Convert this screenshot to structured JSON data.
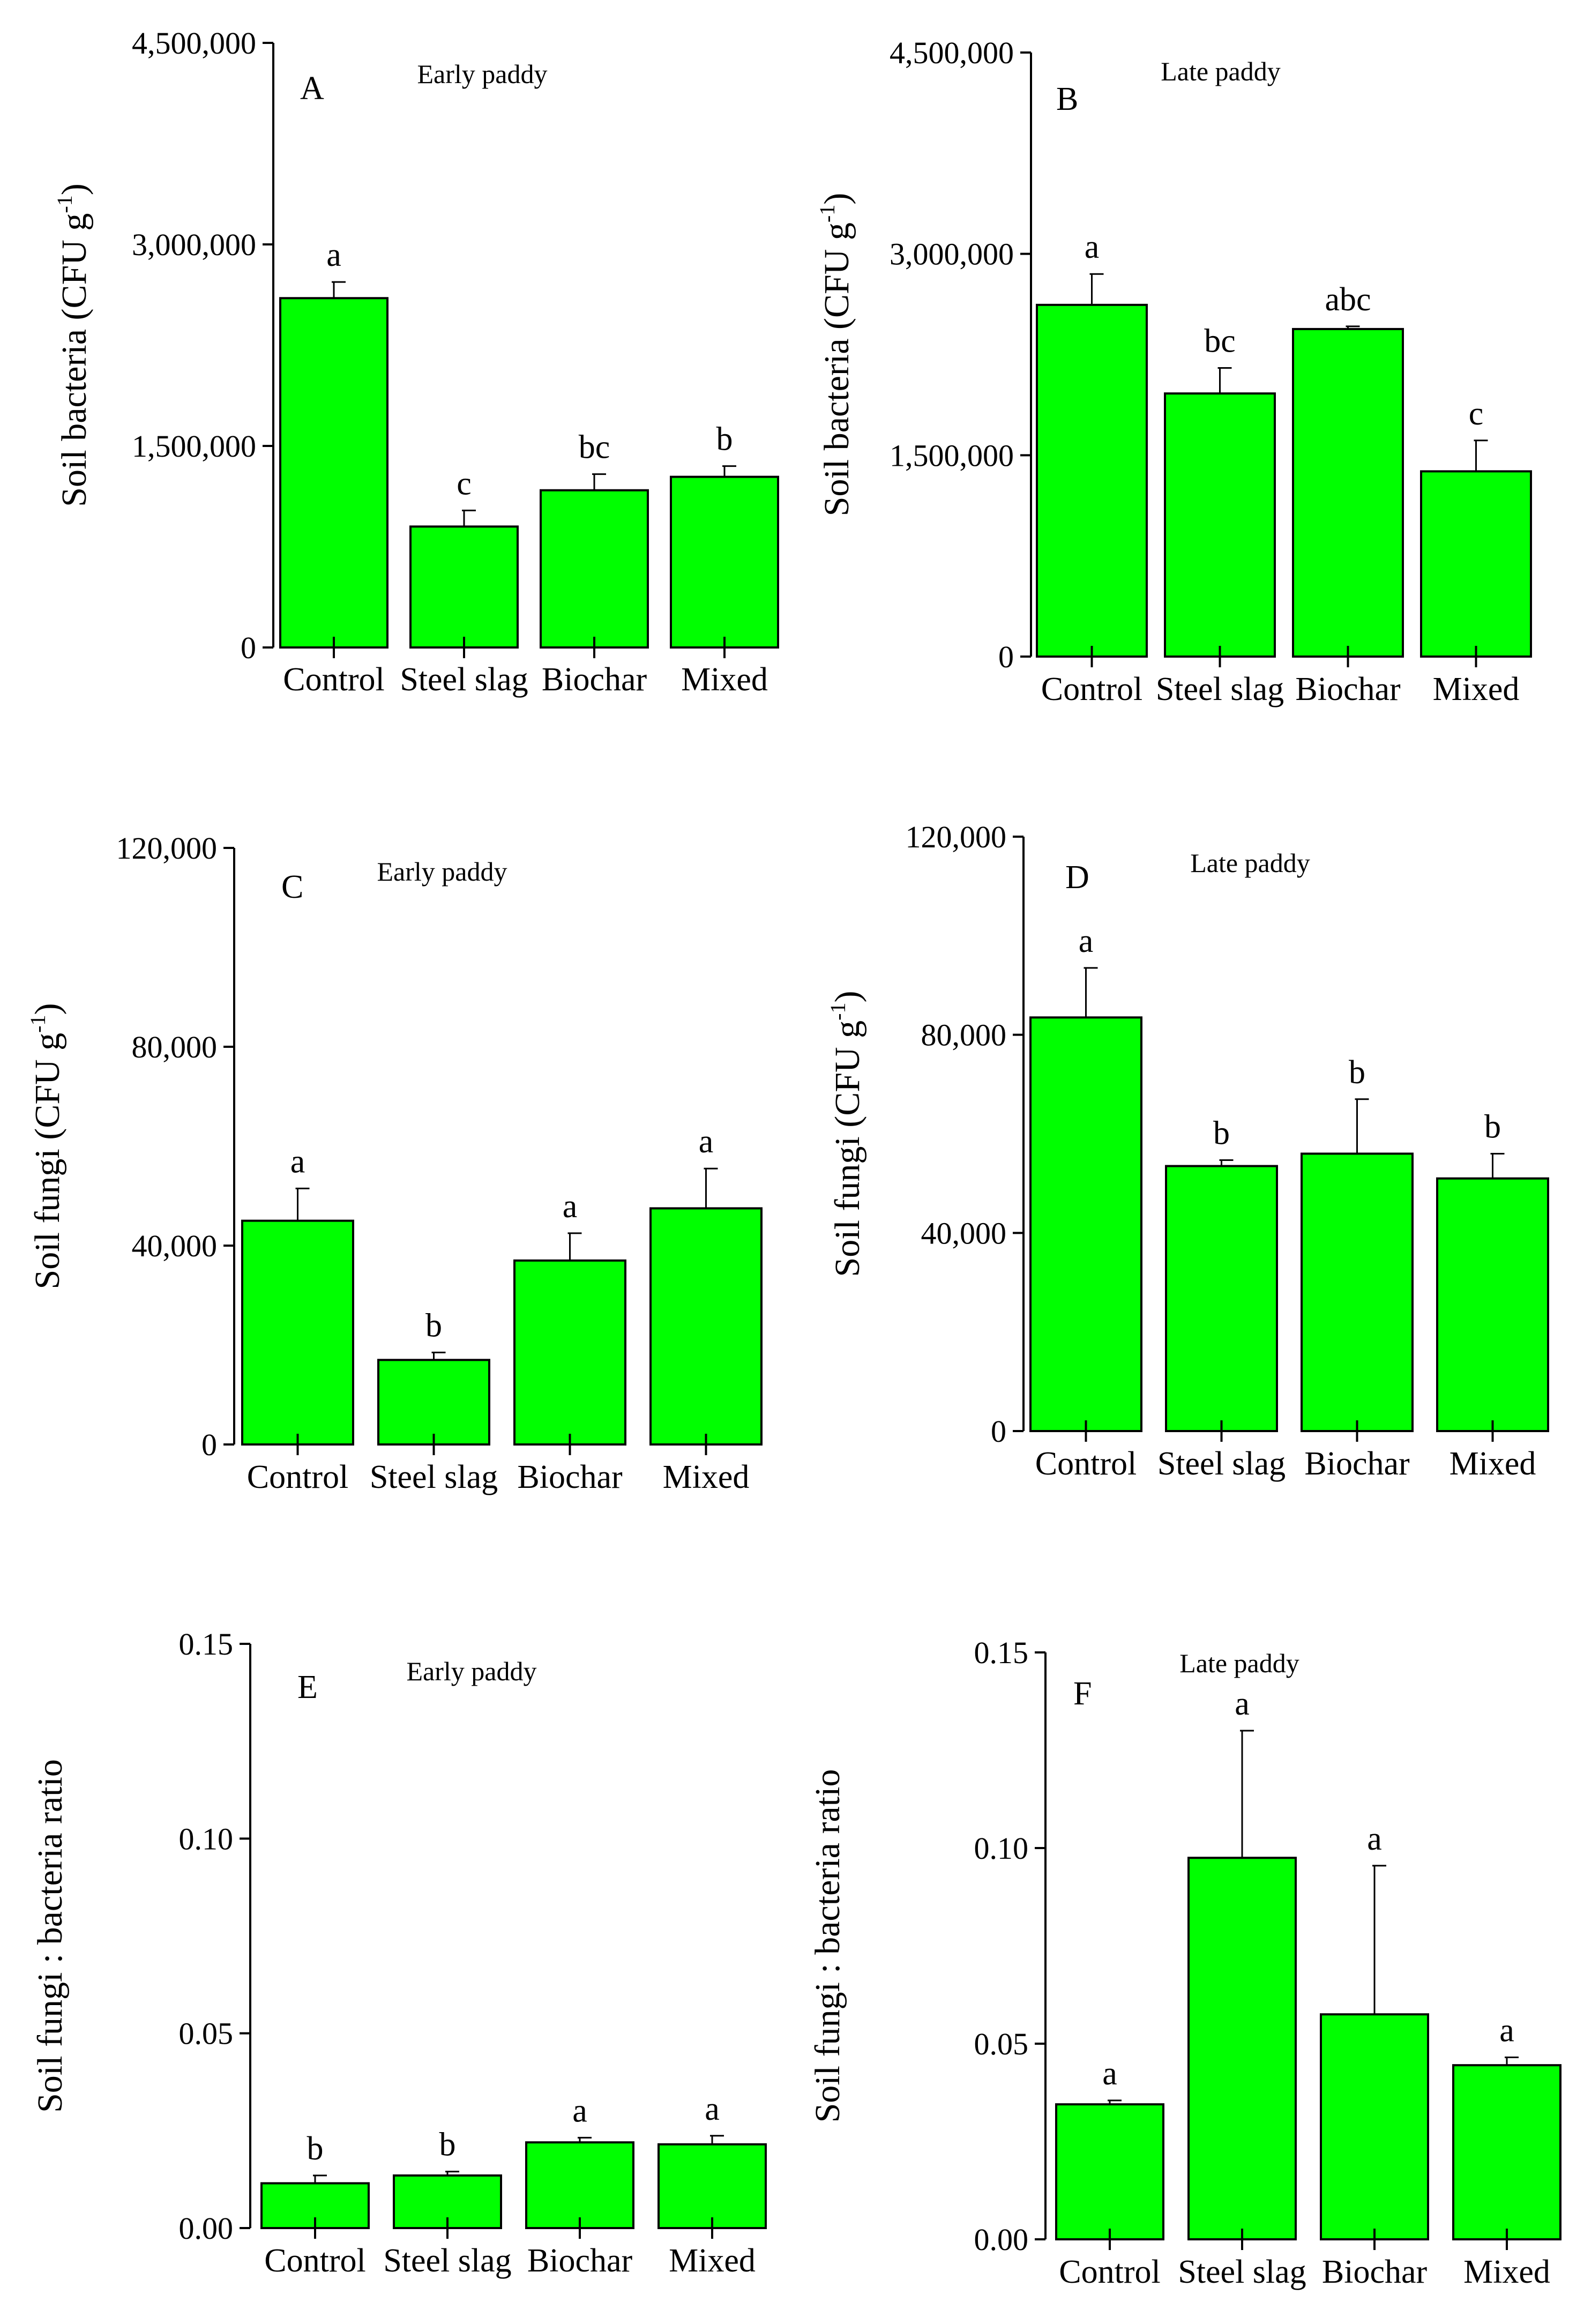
{
  "chart_data": [
    {
      "type": "bar",
      "panel": "A",
      "title": "Early paddy",
      "ylabel": "Soil bacteria  (CFU g",
      "ylabel_sup": "-1",
      "ylabel_end": ")",
      "ylim": [
        0,
        4500000
      ],
      "ytick_values": [
        0,
        1500000,
        3000000,
        4500000
      ],
      "ytick_labels": [
        "0",
        "1,500,000",
        "3,000,000",
        "4,500,000"
      ],
      "categories": [
        "Control",
        "Steel slag",
        "Biochar",
        "Mixed"
      ],
      "values": [
        2600000,
        900000,
        1170000,
        1270000
      ],
      "errors": [
        120000,
        120000,
        120000,
        80000
      ],
      "significance": [
        "a",
        "c",
        "bc",
        "b"
      ]
    },
    {
      "type": "bar",
      "panel": "B",
      "title": "Late paddy",
      "ylabel": "Soil bacteria  (CFU g",
      "ylabel_sup": "-1",
      "ylabel_end": ")",
      "ylim": [
        0,
        4500000
      ],
      "ytick_values": [
        0,
        1500000,
        3000000,
        4500000
      ],
      "ytick_labels": [
        "0",
        "1,500,000",
        "3,000,000",
        "4,500,000"
      ],
      "categories": [
        "Control",
        "Steel slag",
        "Biochar",
        "Mixed"
      ],
      "values": [
        2620000,
        1960000,
        2440000,
        1380000
      ],
      "errors": [
        230000,
        190000,
        20000,
        230000
      ],
      "significance": [
        "a",
        "bc",
        "abc",
        "c"
      ]
    },
    {
      "type": "bar",
      "panel": "C",
      "title": "Early paddy",
      "ylabel": "Soil fungi  (CFU g",
      "ylabel_sup": "-1",
      "ylabel_end": ")",
      "ylim": [
        0,
        120000
      ],
      "ytick_values": [
        0,
        40000,
        80000,
        120000
      ],
      "ytick_labels": [
        "0",
        "40,000",
        "80,000",
        "120,000"
      ],
      "categories": [
        "Control",
        "Steel slag",
        "Biochar",
        "Mixed"
      ],
      "values": [
        45000,
        17000,
        37000,
        47500
      ],
      "errors": [
        6500,
        1500,
        5500,
        8000
      ],
      "significance": [
        "a",
        "b",
        "a",
        "a"
      ]
    },
    {
      "type": "bar",
      "panel": "D",
      "title": "Late paddy",
      "ylabel": "Soil fungi  (CFU g",
      "ylabel_sup": "-1",
      "ylabel_end": ")",
      "ylim": [
        0,
        120000
      ],
      "ytick_values": [
        0,
        40000,
        80000,
        120000
      ],
      "ytick_labels": [
        "0",
        "40,000",
        "80,000",
        "120,000"
      ],
      "categories": [
        "Control",
        "Steel slag",
        "Biochar",
        "Mixed"
      ],
      "values": [
        83500,
        53500,
        56000,
        51000
      ],
      "errors": [
        10000,
        1200,
        11000,
        5000
      ],
      "significance": [
        "a",
        "b",
        "b",
        "b"
      ]
    },
    {
      "type": "bar",
      "panel": "E",
      "title": "Early paddy",
      "ylabel": "Soil fungi : bacteria ratio",
      "ylabel_sup": "",
      "ylabel_end": "",
      "ylim": [
        0,
        0.15
      ],
      "ytick_values": [
        0,
        0.05,
        0.1,
        0.15
      ],
      "ytick_labels": [
        "0.00",
        "0.05",
        "0.10",
        "0.15"
      ],
      "categories": [
        "Control",
        "Steel slag",
        "Biochar",
        "Mixed"
      ],
      "values": [
        0.0115,
        0.0135,
        0.022,
        0.0215
      ],
      "errors": [
        0.002,
        0.001,
        0.0012,
        0.0022
      ],
      "significance": [
        "b",
        "b",
        "a",
        "a"
      ]
    },
    {
      "type": "bar",
      "panel": "F",
      "title": "Late paddy",
      "ylabel": "Soil fungi : bacteria ratio",
      "ylabel_sup": "",
      "ylabel_end": "",
      "ylim": [
        0,
        0.15
      ],
      "ytick_values": [
        0,
        0.05,
        0.1,
        0.15
      ],
      "ytick_labels": [
        "0.00",
        "0.05",
        "0.10",
        "0.15"
      ],
      "categories": [
        "Control",
        "Steel slag",
        "Biochar",
        "Mixed"
      ],
      "values": [
        0.0345,
        0.0975,
        0.0575,
        0.0445
      ],
      "errors": [
        0.001,
        0.0325,
        0.038,
        0.002
      ],
      "significance": [
        "a",
        "a",
        "a",
        "a"
      ]
    }
  ]
}
